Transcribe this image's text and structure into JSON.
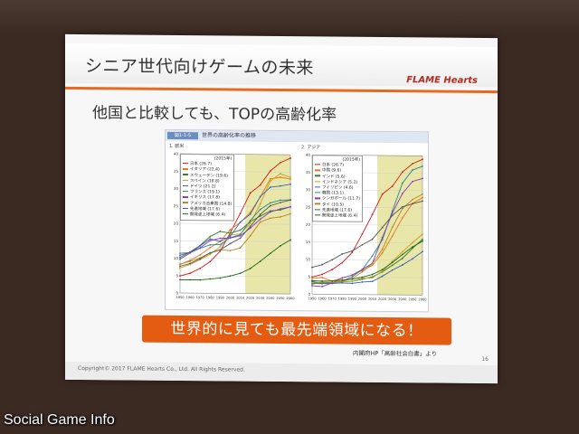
{
  "slide": {
    "title": "シニア世代向けゲームの未来",
    "brand": "FLAME Hearts",
    "subtitle": "他国と比較しても、TOPの高齢化率",
    "figure_id": "図1-1-5",
    "figure_title": "世界の高齢化率の推移",
    "panel1_label": "1. 欧米",
    "panel2_label": "2. アジア",
    "banner": "世界的に見ても最先端領域になる！",
    "source": "内閣府HP「高齢社会白書」より",
    "page_number": "16",
    "copyright": "Copyright© 2017 FLAME Hearts Co., Ltd. All Rights Reserved."
  },
  "watermark": "Social Game Info",
  "colors": {
    "accent": "#e35c12",
    "rule": "#e96a1e",
    "highlight": "#e8e6a8"
  },
  "chart_data": [
    {
      "type": "line",
      "title": "1. 欧米",
      "x": [
        1950,
        1960,
        1970,
        1980,
        1990,
        2000,
        2010,
        2020,
        2030,
        2040,
        2050,
        2060
      ],
      "ylim": [
        0,
        40
      ],
      "legend_year": "(2015年)",
      "series": [
        {
          "name": "日本",
          "label": "(26.7)",
          "color": "#d11a1a",
          "values": [
            4.9,
            5.7,
            7.1,
            9.1,
            12.1,
            17.4,
            23.0,
            28.9,
            31.2,
            35.3,
            37.7,
            39.0
          ]
        },
        {
          "name": "イタリア",
          "label": "(22.4)",
          "color": "#e07a1a",
          "values": [
            8.2,
            9.4,
            11.0,
            13.1,
            14.9,
            18.3,
            20.4,
            23.3,
            27.8,
            33.0,
            33.5,
            33.0
          ]
        },
        {
          "name": "スウェーデン",
          "label": "(19.6)",
          "color": "#3a7a2a",
          "values": [
            10.2,
            11.8,
            13.7,
            16.3,
            17.8,
            17.3,
            18.2,
            20.6,
            22.3,
            23.8,
            24.1,
            25.0
          ]
        },
        {
          "name": "スペイン",
          "label": "(18.8)",
          "color": "#c8a21a",
          "values": [
            7.2,
            8.2,
            9.6,
            11.2,
            13.4,
            16.8,
            17.1,
            20.2,
            25.8,
            32.4,
            34.5,
            33.5
          ]
        },
        {
          "name": "ドイツ",
          "label": "(21.2)",
          "color": "#3a64b8",
          "values": [
            9.7,
            11.5,
            13.6,
            15.6,
            14.9,
            16.4,
            20.5,
            22.8,
            27.9,
            30.6,
            31.0,
            31.5
          ]
        },
        {
          "name": "フランス",
          "label": "(19.1)",
          "color": "#2a8a8a",
          "values": [
            11.4,
            11.6,
            12.9,
            13.9,
            14.0,
            16.0,
            16.9,
            21.0,
            24.2,
            26.1,
            26.9,
            27.0
          ]
        },
        {
          "name": "イギリス",
          "label": "(17.8)",
          "color": "#8a3ab8",
          "values": [
            10.8,
            11.7,
            13.0,
            15.1,
            15.8,
            15.9,
            16.6,
            18.8,
            21.4,
            23.5,
            24.4,
            25.0
          ]
        },
        {
          "name": "アメリカ合衆国",
          "label": "(14.8)",
          "color": "#b8862a",
          "values": [
            8.3,
            9.1,
            10.1,
            11.6,
            12.5,
            12.3,
            13.1,
            16.6,
            20.6,
            21.7,
            22.1,
            23.0
          ]
        },
        {
          "name": "先進地域",
          "label": "(17.6)",
          "color": "#555555",
          "values": [
            7.7,
            8.5,
            9.9,
            11.6,
            12.5,
            14.3,
            15.9,
            19.3,
            22.8,
            25.3,
            26.2,
            27.0
          ]
        },
        {
          "name": "開発途上地域",
          "label": "(6.4)",
          "color": "#1a6a1a",
          "values": [
            3.8,
            3.8,
            3.8,
            4.1,
            4.4,
            5.0,
            5.8,
            7.2,
            9.3,
            11.6,
            13.8,
            15.5
          ]
        }
      ]
    },
    {
      "type": "line",
      "title": "2. アジア",
      "x": [
        1950,
        1960,
        1970,
        1980,
        1990,
        2000,
        2010,
        2020,
        2030,
        2040,
        2050,
        2060
      ],
      "ylim": [
        0,
        40
      ],
      "legend_year": "(2015年)",
      "series": [
        {
          "name": "日本",
          "label": "(26.7)",
          "color": "#d11a1a",
          "values": [
            4.9,
            5.7,
            7.1,
            9.1,
            12.1,
            17.4,
            23.0,
            28.9,
            31.2,
            35.3,
            37.7,
            39.0
          ]
        },
        {
          "name": "中国",
          "label": "(9.6)",
          "color": "#e07a1a",
          "values": [
            4.5,
            4.8,
            3.8,
            4.7,
            5.6,
            6.9,
            8.4,
            12.0,
            16.9,
            22.1,
            26.3,
            28.0
          ]
        },
        {
          "name": "インド",
          "label": "(5.6)",
          "color": "#3a7a2a",
          "values": [
            3.1,
            3.0,
            3.3,
            3.6,
            3.8,
            4.4,
            5.1,
            6.6,
            8.5,
            10.5,
            13.4,
            16.0
          ]
        },
        {
          "name": "インドネシア",
          "label": "(5.2)",
          "color": "#c8a21a",
          "values": [
            4.0,
            3.6,
            3.3,
            3.6,
            3.8,
            4.7,
            4.8,
            6.8,
            9.6,
            12.4,
            15.0,
            17.5
          ]
        },
        {
          "name": "フィリピン",
          "label": "(4.6)",
          "color": "#3a64b8",
          "values": [
            3.6,
            3.1,
            3.1,
            3.3,
            3.2,
            3.6,
            3.8,
            5.3,
            7.1,
            8.6,
            10.4,
            12.5
          ]
        },
        {
          "name": "韓国",
          "label": "(13.1)",
          "color": "#2a8a8a",
          "values": [
            2.9,
            3.3,
            3.4,
            3.8,
            5.1,
            7.2,
            11.1,
            15.8,
            24.1,
            32.1,
            35.9,
            37.0
          ]
        },
        {
          "name": "シンガポール",
          "label": "(11.7)",
          "color": "#8a3ab8",
          "values": [
            2.4,
            2.2,
            3.3,
            4.7,
            5.6,
            7.2,
            9.0,
            16.4,
            23.5,
            29.1,
            32.6,
            33.5
          ]
        },
        {
          "name": "タイ",
          "label": "(10.5)",
          "color": "#b8862a",
          "values": [
            3.2,
            3.4,
            3.5,
            3.7,
            4.6,
            6.5,
            8.9,
            13.0,
            19.4,
            24.8,
            27.4,
            29.0
          ]
        },
        {
          "name": "先進地域",
          "label": "(17.6)",
          "color": "#555555",
          "values": [
            7.7,
            8.5,
            9.9,
            11.6,
            12.5,
            14.3,
            15.9,
            19.3,
            22.8,
            25.3,
            26.2,
            27.0
          ]
        },
        {
          "name": "開発途上地域",
          "label": "(6.4)",
          "color": "#1a6a1a",
          "values": [
            3.8,
            3.8,
            3.8,
            4.1,
            4.4,
            5.0,
            5.8,
            7.2,
            9.3,
            11.6,
            13.8,
            15.5
          ]
        }
      ]
    }
  ]
}
